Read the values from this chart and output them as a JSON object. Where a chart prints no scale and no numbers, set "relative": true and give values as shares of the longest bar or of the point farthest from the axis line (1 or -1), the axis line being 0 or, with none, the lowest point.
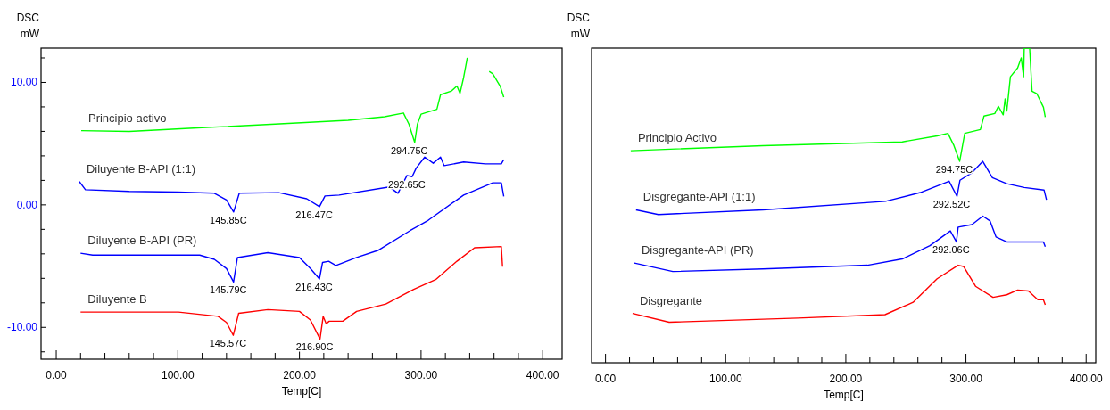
{
  "chart_data": [
    {
      "type": "line",
      "ylabel": "DSC\nmW",
      "xlabel": "Temp[C]",
      "xlim": [
        -12.5,
        416
      ],
      "ylim": [
        -12.6,
        12.8
      ],
      "xticks": [
        {
          "value": 0,
          "label": "0.00"
        },
        {
          "value": 20,
          "label": null
        },
        {
          "value": 40,
          "label": null
        },
        {
          "value": 60,
          "label": null
        },
        {
          "value": 80,
          "label": null
        },
        {
          "value": 100,
          "label": "100.00"
        },
        {
          "value": 120,
          "label": null
        },
        {
          "value": 140,
          "label": null
        },
        {
          "value": 160,
          "label": null
        },
        {
          "value": 180,
          "label": null
        },
        {
          "value": 200,
          "label": "200.00"
        },
        {
          "value": 220,
          "label": null
        },
        {
          "value": 240,
          "label": null
        },
        {
          "value": 260,
          "label": null
        },
        {
          "value": 280,
          "label": null
        },
        {
          "value": 300,
          "label": "300.00"
        },
        {
          "value": 320,
          "label": null
        },
        {
          "value": 340,
          "label": null
        },
        {
          "value": 360,
          "label": null
        },
        {
          "value": 380,
          "label": null
        },
        {
          "value": 400,
          "label": "400.00"
        }
      ],
      "yticks": [
        {
          "value": -12,
          "label": null
        },
        {
          "value": -10,
          "label": "-10.00"
        },
        {
          "value": -8,
          "label": null
        },
        {
          "value": -6,
          "label": null
        },
        {
          "value": -4,
          "label": null
        },
        {
          "value": -2,
          "label": null
        },
        {
          "value": 0,
          "label": "0.00"
        },
        {
          "value": 2,
          "label": null
        },
        {
          "value": 4,
          "label": null
        },
        {
          "value": 6,
          "label": null
        },
        {
          "value": 8,
          "label": null
        },
        {
          "value": 10,
          "label": "10.00"
        },
        {
          "value": 12,
          "label": null
        }
      ],
      "grid": false,
      "legend": false,
      "marker": "none",
      "line_style": "solid",
      "series": [
        {
          "name": "Principio activo",
          "color": "#00ff00",
          "x": [
            20.5,
            60,
            120,
            180,
            240,
            270,
            285.5,
            290,
            294.75,
            297,
            300,
            313,
            316,
            325,
            329.5,
            332,
            335,
            338,
            344,
            353,
            356,
            359,
            365,
            368
          ],
          "values": [
            6.06,
            6.0,
            6.3,
            6.6,
            6.9,
            7.2,
            7.5,
            6.6,
            5.1,
            6.6,
            7.4,
            7.8,
            9.0,
            9.3,
            9.7,
            9.1,
            10.4,
            12.0,
            null,
            null,
            10.9,
            10.7,
            9.7,
            8.8
          ]
        },
        {
          "name": "Diluyente B-API (1:1)",
          "color": "#0000ff",
          "x": [
            19,
            24,
            60,
            100,
            130,
            140,
            145.85,
            150.5,
            183,
            206,
            216.47,
            221,
            232.6,
            274,
            281,
            288.4,
            292.65,
            296,
            303,
            310,
            316,
            319,
            335,
            353,
            366,
            368
          ],
          "values": [
            1.9,
            1.24,
            1.1,
            1.05,
            0.95,
            0.4,
            -0.58,
            0.95,
            1.0,
            0.5,
            -0.15,
            0.73,
            0.8,
            1.46,
            0.95,
            2.4,
            2.3,
            3.0,
            3.9,
            3.4,
            3.9,
            3.2,
            3.5,
            3.35,
            3.35,
            3.7
          ]
        },
        {
          "name": "Diluyente B-API (PR)",
          "color": "#0000ff",
          "x": [
            20,
            30,
            118,
            130,
            140,
            145.79,
            149,
            174,
            200,
            209,
            216.43,
            219,
            224,
            230,
            247,
            265,
            291,
            306,
            335,
            359,
            366,
            368
          ],
          "values": [
            -3.95,
            -4.1,
            -4.1,
            -4.45,
            -5.2,
            -6.3,
            -4.3,
            -3.9,
            -4.3,
            -5.2,
            -6.05,
            -4.7,
            -4.6,
            -4.95,
            -4.3,
            -3.7,
            -2.1,
            -1.25,
            0.8,
            1.8,
            1.8,
            0.7
          ]
        },
        {
          "name": "Diluyente B",
          "color": "#ff0000",
          "x": [
            20,
            100.5,
            133,
            140,
            145.57,
            150,
            174,
            200,
            209,
            216.9,
            219.5,
            222,
            224.5,
            235.6,
            247,
            271,
            294,
            312,
            329.5,
            344,
            366,
            367
          ],
          "values": [
            -8.75,
            -8.75,
            -9.1,
            -9.6,
            -10.65,
            -8.85,
            -8.55,
            -8.7,
            -9.4,
            -10.95,
            -9.1,
            -9.7,
            -9.5,
            -9.5,
            -8.7,
            -8.1,
            -6.9,
            -6.1,
            -4.6,
            -3.5,
            -3.4,
            -5.05
          ]
        }
      ],
      "annotations": [
        {
          "text": "294.75C",
          "x": 294.75,
          "y": 5.1
        },
        {
          "text": "292.65C",
          "x": 292.65,
          "y": 2.3
        },
        {
          "text": "145.85C",
          "x": 145.85,
          "y": -0.58
        },
        {
          "text": "216.47C",
          "x": 216.47,
          "y": -0.15
        },
        {
          "text": "145.79C",
          "x": 145.79,
          "y": -6.3
        },
        {
          "text": "216.43C",
          "x": 216.43,
          "y": -6.05
        },
        {
          "text": "145.57C",
          "x": 145.57,
          "y": -10.65
        },
        {
          "text": "216.90C",
          "x": 216.9,
          "y": -10.95
        }
      ]
    },
    {
      "type": "line",
      "ylabel": "DSC\nmW",
      "xlabel": "Temp[C]",
      "xlim": [
        -11.6,
        408
      ],
      "relative": true,
      "xticks": [
        {
          "value": 0,
          "label": "0.00"
        },
        {
          "value": 20,
          "label": null
        },
        {
          "value": 40,
          "label": null
        },
        {
          "value": 60,
          "label": null
        },
        {
          "value": 80,
          "label": null
        },
        {
          "value": 100,
          "label": "100.00"
        },
        {
          "value": 120,
          "label": null
        },
        {
          "value": 140,
          "label": null
        },
        {
          "value": 160,
          "label": null
        },
        {
          "value": 180,
          "label": null
        },
        {
          "value": 200,
          "label": "200.00"
        },
        {
          "value": 220,
          "label": null
        },
        {
          "value": 240,
          "label": null
        },
        {
          "value": 260,
          "label": null
        },
        {
          "value": 280,
          "label": null
        },
        {
          "value": 300,
          "label": "300.00"
        },
        {
          "value": 320,
          "label": null
        },
        {
          "value": 340,
          "label": null
        },
        {
          "value": 360,
          "label": null
        },
        {
          "value": 380,
          "label": null
        },
        {
          "value": 400,
          "label": "400.00"
        }
      ],
      "grid": false,
      "legend": false,
      "marker": "none",
      "line_style": "solid",
      "series": [
        {
          "name": "Principio Activo",
          "color": "#00ff00",
          "x": [
            21,
            131,
            247,
            276,
            285,
            290,
            294.75,
            299,
            312,
            315,
            324,
            327,
            331,
            332.6,
            334,
            337,
            343,
            346,
            348,
            348.5,
            353,
            355,
            359,
            364.5,
            366
          ],
          "values": [
            0.674,
            0.69,
            0.702,
            0.721,
            0.729,
            0.69,
            0.64,
            0.729,
            0.741,
            0.784,
            0.792,
            0.815,
            0.788,
            0.839,
            0.8,
            0.909,
            0.937,
            0.969,
            0.909,
            1,
            1,
            0.863,
            0.855,
            0.812,
            0.781
          ]
        },
        {
          "name": "Disgregante-API (1:1)",
          "color": "#0000ff",
          "x": [
            25.4,
            44,
            131,
            233,
            262,
            286,
            292.52,
            295,
            305,
            314,
            322,
            334,
            348.5,
            365,
            367
          ],
          "values": [
            0.486,
            0.471,
            0.486,
            0.513,
            0.541,
            0.577,
            0.529,
            0.58,
            0.604,
            0.64,
            0.588,
            0.569,
            0.557,
            0.549,
            0.518
          ]
        },
        {
          "name": "Disgregante-API (PR)",
          "color": "#0000ff",
          "x": [
            24,
            56,
            131,
            218,
            247,
            270,
            287,
            292.06,
            293.5,
            305,
            314,
            320,
            325,
            334,
            364.5,
            366
          ],
          "values": [
            0.317,
            0.29,
            0.298,
            0.31,
            0.33,
            0.372,
            0.419,
            0.384,
            0.431,
            0.439,
            0.466,
            0.451,
            0.4,
            0.384,
            0.384,
            0.369
          ]
        },
        {
          "name": "Disgregante",
          "color": "#ff0000",
          "x": [
            22.5,
            53,
            160,
            232.6,
            256,
            276,
            293.5,
            298,
            308,
            322.5,
            334,
            343,
            352,
            360,
            364.5,
            366
          ],
          "values": [
            0.157,
            0.129,
            0.142,
            0.153,
            0.192,
            0.267,
            0.31,
            0.306,
            0.243,
            0.208,
            0.216,
            0.231,
            0.228,
            0.2,
            0.2,
            0.184
          ]
        }
      ],
      "annotations": [
        {
          "text": "294.75C",
          "x": 294.75,
          "y": 0.64
        },
        {
          "text": "292.52C",
          "x": 292.52,
          "y": 0.529
        },
        {
          "text": "292.06C",
          "x": 292.06,
          "y": 0.384
        }
      ]
    }
  ]
}
